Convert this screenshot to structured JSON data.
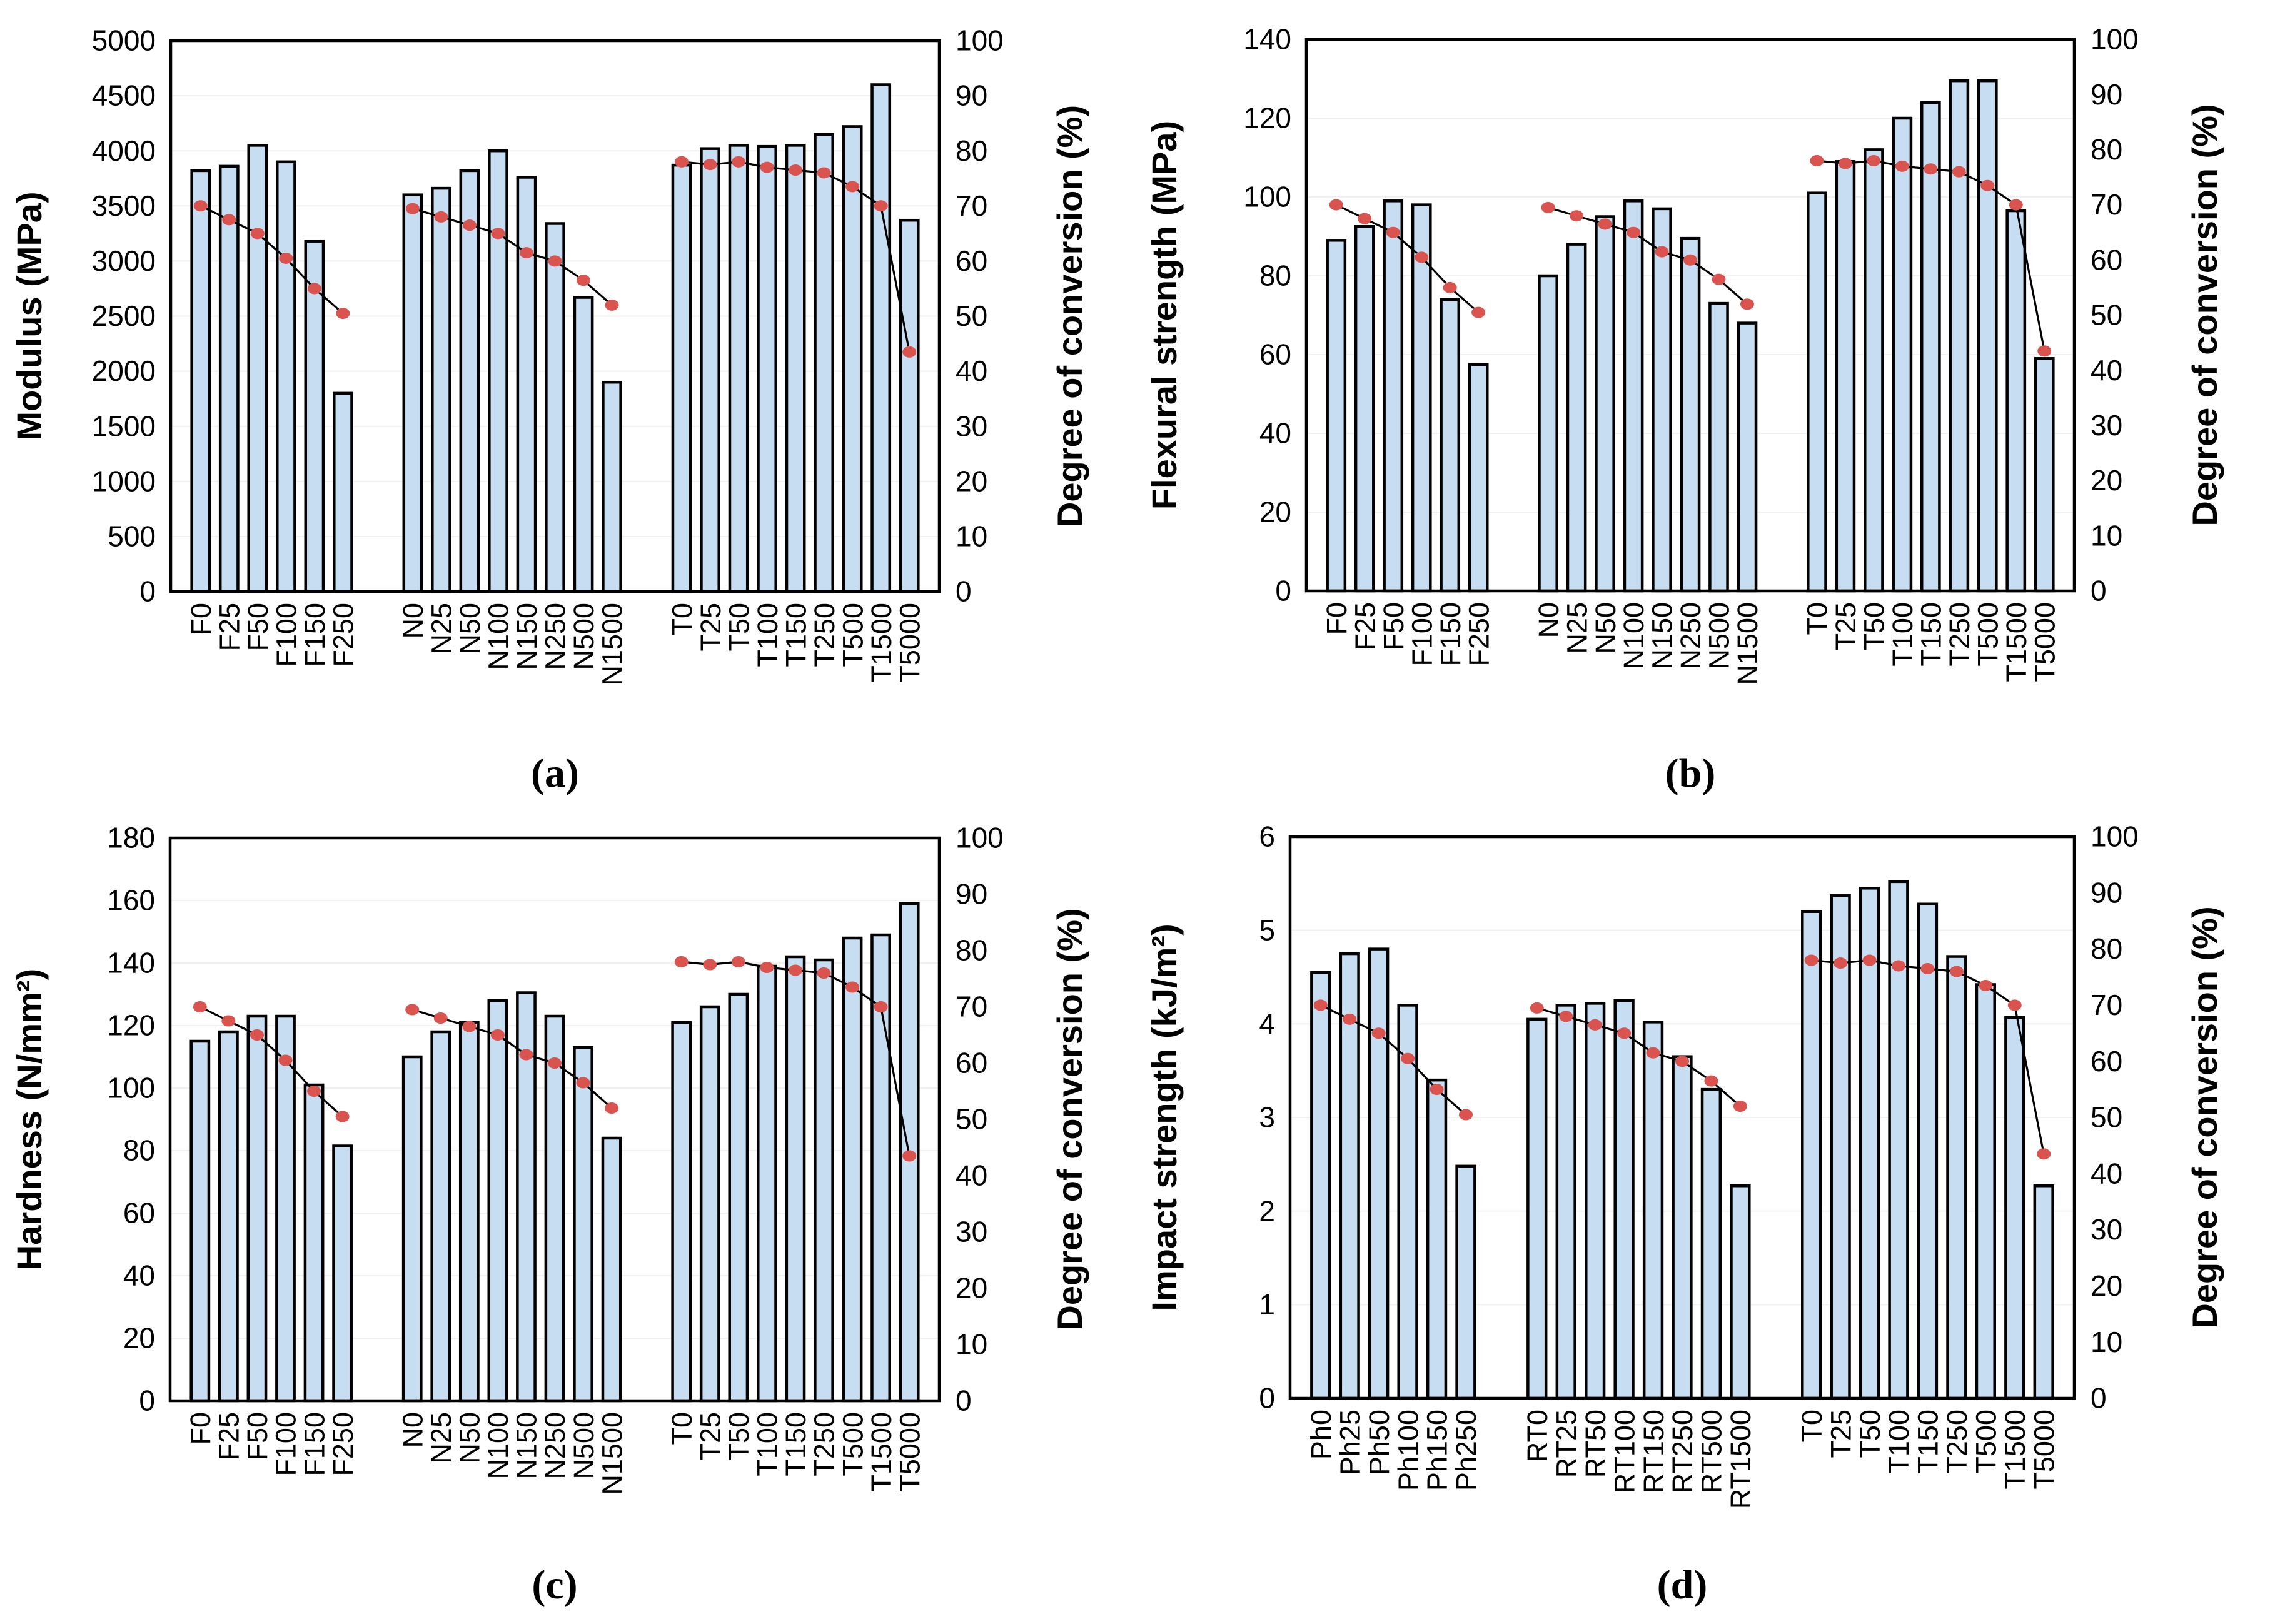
{
  "figure": {
    "background": "#ffffff",
    "panel_captions": [
      "(a)",
      "(b)",
      "(c)",
      "(d)"
    ]
  },
  "style": {
    "bar_fill": "#c6ddf2",
    "bar_stroke": "#000000",
    "line_color": "#000000",
    "marker_color": "#d9534f",
    "grid_color": "#f1f1f1",
    "frame_color": "#000000",
    "text_color": "#000000"
  },
  "chart_data": [
    {
      "id": "a",
      "type": "bar",
      "caption": "(a)",
      "ylabel": "Modulus (MPa)",
      "ylabel_right": "Degree of conversion (%)",
      "ylim": [
        0,
        5000
      ],
      "ytick_step": 500,
      "ylim_right": [
        0,
        100
      ],
      "ytick_step_right": 10,
      "grid": "faint-horizontal",
      "legend_position": "none",
      "bar_series_name": "Modulus",
      "line_series_name": "Degree of conversion",
      "groups": [
        {
          "name": "F",
          "categories": [
            "F0",
            "F25",
            "F50",
            "F100",
            "F150",
            "F250"
          ],
          "bar_values": [
            3820,
            3860,
            4050,
            3900,
            3180,
            1800
          ],
          "conversion_values": [
            70,
            67.5,
            65,
            60.5,
            55,
            50.5
          ]
        },
        {
          "name": "N",
          "categories": [
            "N0",
            "N25",
            "N50",
            "N100",
            "N150",
            "N250",
            "N500",
            "N1500"
          ],
          "bar_values": [
            3600,
            3660,
            3820,
            4000,
            3760,
            3340,
            2670,
            1900
          ],
          "conversion_values": [
            69.5,
            68,
            66.5,
            65,
            61.5,
            60,
            56.5,
            52
          ]
        },
        {
          "name": "T",
          "categories": [
            "T0",
            "T25",
            "T50",
            "T100",
            "T150",
            "T250",
            "T500",
            "T1500",
            "T5000"
          ],
          "bar_values": [
            3870,
            4020,
            4050,
            4040,
            4050,
            4150,
            4220,
            4600,
            3370
          ],
          "conversion_values": [
            78,
            77.5,
            78,
            77,
            76.5,
            76,
            73.5,
            70,
            43.5
          ]
        }
      ]
    },
    {
      "id": "b",
      "type": "bar",
      "caption": "(b)",
      "ylabel": "Flexural strength (MPa)",
      "ylabel_right": "Degree of conversion (%)",
      "ylim": [
        0,
        140
      ],
      "ytick_step": 20,
      "ylim_right": [
        0,
        100
      ],
      "ytick_step_right": 10,
      "grid": "faint-horizontal",
      "legend_position": "none",
      "bar_series_name": "Flexural strength",
      "line_series_name": "Degree of conversion",
      "groups": [
        {
          "name": "F",
          "categories": [
            "F0",
            "F25",
            "F50",
            "F100",
            "F150",
            "F250"
          ],
          "bar_values": [
            89,
            92.5,
            99,
            98,
            74,
            57.5
          ],
          "conversion_values": [
            70,
            67.5,
            65,
            60.5,
            55,
            50.5
          ]
        },
        {
          "name": "N",
          "categories": [
            "N0",
            "N25",
            "N50",
            "N100",
            "N150",
            "N250",
            "N500",
            "N1500"
          ],
          "bar_values": [
            80,
            88,
            95,
            99,
            97,
            89.5,
            73,
            68
          ],
          "conversion_values": [
            69.5,
            68,
            66.5,
            65,
            61.5,
            60,
            56.5,
            52
          ]
        },
        {
          "name": "T",
          "categories": [
            "T0",
            "T25",
            "T50",
            "T100",
            "T150",
            "T250",
            "T500",
            "T1500",
            "T5000"
          ],
          "bar_values": [
            101,
            109,
            112,
            120,
            124,
            129.5,
            129.5,
            96.5,
            59
          ],
          "conversion_values": [
            78,
            77.5,
            78,
            77,
            76.5,
            76,
            73.5,
            70,
            43.5
          ]
        }
      ]
    },
    {
      "id": "c",
      "type": "bar",
      "caption": "(c)",
      "ylabel": "Hardness (N/mm²)",
      "ylabel_right": "Degree of conversion (%)",
      "ylim": [
        0,
        180
      ],
      "ytick_step": 20,
      "ylim_right": [
        0,
        100
      ],
      "ytick_step_right": 10,
      "grid": "faint-horizontal",
      "legend_position": "none",
      "bar_series_name": "Hardness",
      "line_series_name": "Degree of conversion",
      "groups": [
        {
          "name": "F",
          "categories": [
            "F0",
            "F25",
            "F50",
            "F100",
            "F150",
            "F250"
          ],
          "bar_values": [
            115,
            118,
            123,
            123,
            101,
            81.5
          ],
          "conversion_values": [
            70,
            67.5,
            65,
            60.5,
            55,
            50.5
          ]
        },
        {
          "name": "N",
          "categories": [
            "N0",
            "N25",
            "N50",
            "N100",
            "N150",
            "N250",
            "N500",
            "N1500"
          ],
          "bar_values": [
            110,
            118,
            121,
            128,
            130.5,
            123,
            113,
            84
          ],
          "conversion_values": [
            69.5,
            68,
            66.5,
            65,
            61.5,
            60,
            56.5,
            52
          ]
        },
        {
          "name": "T",
          "categories": [
            "T0",
            "T25",
            "T50",
            "T100",
            "T150",
            "T250",
            "T500",
            "T1500",
            "T5000"
          ],
          "bar_values": [
            121,
            126,
            130,
            139,
            142,
            141,
            148,
            149,
            159
          ],
          "conversion_values": [
            78,
            77.5,
            78,
            77,
            76.5,
            76,
            73.5,
            70,
            43.5
          ]
        }
      ]
    },
    {
      "id": "d",
      "type": "bar",
      "caption": "(d)",
      "ylabel": "Impact strength (kJ/m²)",
      "ylabel_right": "Degree of conversion (%)",
      "ylim": [
        0,
        6
      ],
      "ytick_step": 1,
      "ylim_right": [
        0,
        100
      ],
      "ytick_step_right": 10,
      "grid": "faint-horizontal",
      "legend_position": "none",
      "bar_series_name": "Impact strength",
      "line_series_name": "Degree of conversion",
      "groups": [
        {
          "name": "Ph",
          "categories": [
            "Ph0",
            "Ph25",
            "Ph50",
            "Ph100",
            "Ph150",
            "Ph250"
          ],
          "bar_values": [
            4.55,
            4.75,
            4.8,
            4.2,
            3.4,
            2.48
          ],
          "conversion_values": [
            70,
            67.5,
            65,
            60.5,
            55,
            50.5
          ]
        },
        {
          "name": "RT",
          "categories": [
            "RT0",
            "RT25",
            "RT50",
            "RT100",
            "RT150",
            "RT250",
            "RT500",
            "RT1500"
          ],
          "bar_values": [
            4.05,
            4.2,
            4.22,
            4.25,
            4.02,
            3.65,
            3.3,
            2.27
          ],
          "conversion_values": [
            69.5,
            68,
            66.5,
            65,
            61.5,
            60,
            56.5,
            52
          ]
        },
        {
          "name": "T",
          "categories": [
            "T0",
            "T25",
            "T50",
            "T100",
            "T150",
            "T250",
            "T500",
            "T1500",
            "T5000"
          ],
          "bar_values": [
            5.2,
            5.37,
            5.45,
            5.52,
            5.28,
            4.72,
            4.42,
            4.07,
            2.27
          ],
          "conversion_values": [
            78,
            77.5,
            78,
            77,
            76.5,
            76,
            73.5,
            70,
            43.5
          ]
        }
      ]
    }
  ]
}
